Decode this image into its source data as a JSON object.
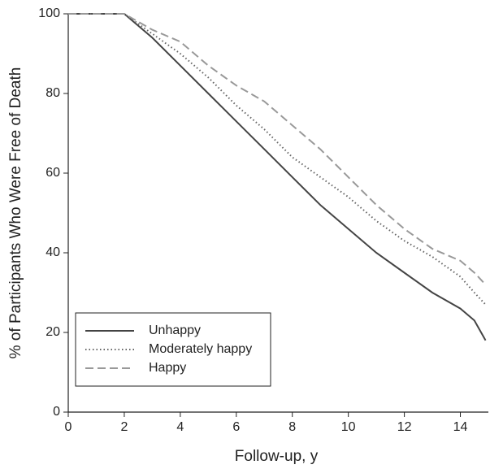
{
  "chart_data": {
    "type": "line",
    "xlabel": "Follow-up, y",
    "ylabel": "% of Participants Who Were Free of Death",
    "x": [
      0,
      2,
      3,
      4,
      5,
      6,
      7,
      8,
      9,
      10,
      11,
      12,
      13,
      14,
      14.5,
      14.9
    ],
    "series": [
      {
        "name": "Unhappy",
        "color": "#444444",
        "dash": "solid",
        "values": [
          100,
          100,
          94,
          87,
          80,
          73,
          66,
          59,
          52,
          46,
          40,
          35,
          30,
          26,
          23,
          18
        ]
      },
      {
        "name": "Moderately happy",
        "color": "#666666",
        "dash": "dotted",
        "values": [
          100,
          100,
          95,
          90,
          84,
          77,
          71,
          64,
          59,
          54,
          48,
          43,
          39,
          34,
          30,
          27
        ]
      },
      {
        "name": "Happy",
        "color": "#999999",
        "dash": "dashed",
        "values": [
          100,
          100,
          96,
          93,
          87,
          82,
          78,
          72,
          66,
          59,
          52,
          46,
          41,
          38,
          35,
          32
        ]
      }
    ],
    "xlim": [
      0,
      15
    ],
    "xticks": [
      0,
      2,
      4,
      6,
      8,
      10,
      12,
      14
    ],
    "ylim": [
      0,
      100
    ],
    "yticks": [
      0,
      20,
      40,
      60,
      80,
      100
    ],
    "grid": false,
    "legend": "lower left"
  }
}
